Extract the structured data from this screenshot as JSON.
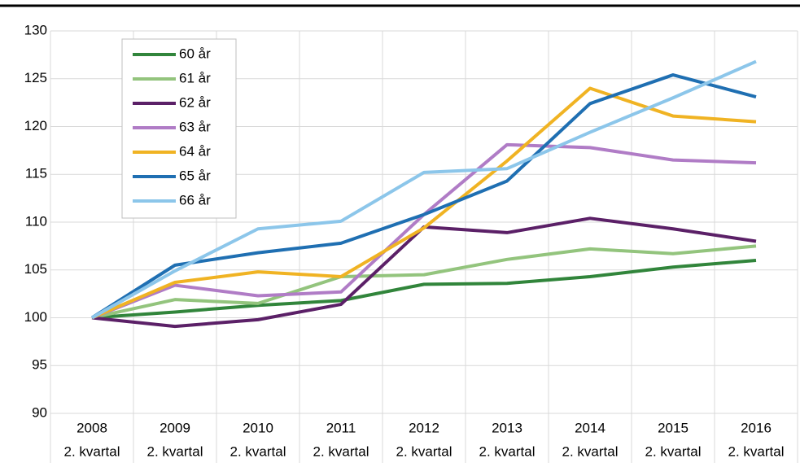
{
  "chart_data": {
    "type": "line",
    "categories": [
      [
        "2008",
        "2. kvartal"
      ],
      [
        "2009",
        "2. kvartal"
      ],
      [
        "2010",
        "2. kvartal"
      ],
      [
        "2011",
        "2. kvartal"
      ],
      [
        "2012",
        "2. kvartal"
      ],
      [
        "2013",
        "2. kvartal"
      ],
      [
        "2014",
        "2. kvartal"
      ],
      [
        "2015",
        "2. kvartal"
      ],
      [
        "2016",
        "2. kvartal"
      ]
    ],
    "series": [
      {
        "name": "60 år",
        "color": "#31853b",
        "values": [
          100,
          100.6,
          101.3,
          101.8,
          103.5,
          103.6,
          104.3,
          105.3,
          106.0
        ]
      },
      {
        "name": "61 år",
        "color": "#93c47d",
        "values": [
          100,
          101.9,
          101.5,
          104.3,
          104.5,
          106.1,
          107.2,
          106.7,
          107.5
        ]
      },
      {
        "name": "62 år",
        "color": "#5b2067",
        "values": [
          100,
          99.1,
          99.8,
          101.4,
          109.5,
          108.9,
          110.4,
          109.3,
          108.0
        ]
      },
      {
        "name": "63 år",
        "color": "#b07cc6",
        "values": [
          100,
          103.4,
          102.3,
          102.7,
          110.8,
          118.1,
          117.8,
          116.5,
          116.2
        ]
      },
      {
        "name": "64 år",
        "color": "#f0b323",
        "values": [
          100,
          103.7,
          104.8,
          104.3,
          109.4,
          116.4,
          124.0,
          121.1,
          120.5
        ]
      },
      {
        "name": "65 år",
        "color": "#1f6fb2",
        "values": [
          100,
          105.5,
          106.8,
          107.8,
          110.8,
          114.3,
          122.4,
          125.4,
          123.1
        ]
      },
      {
        "name": "66 år",
        "color": "#8cc6ea",
        "values": [
          100,
          104.9,
          109.3,
          110.1,
          115.2,
          115.6,
          119.4,
          123.0,
          126.8
        ]
      }
    ],
    "ylim": [
      90,
      130
    ],
    "yticks": [
      90,
      95,
      100,
      105,
      110,
      115,
      120,
      125,
      130
    ],
    "grid": true
  }
}
